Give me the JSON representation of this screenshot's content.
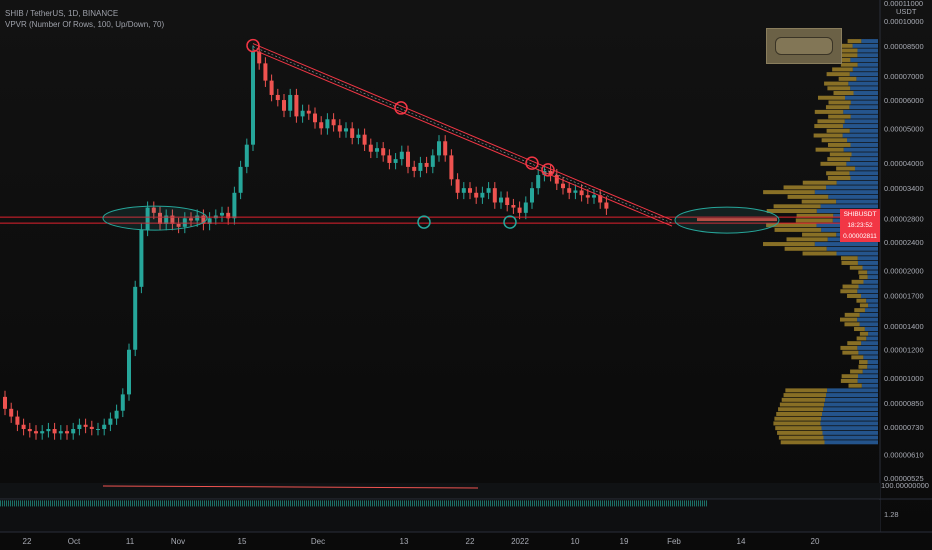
{
  "header": {
    "symbol_line": "SHIB / TetherUS, 1D, BINANCE",
    "indicator_line": "VPVR (Number Of Rows, 100, Up/Down, 70)"
  },
  "price_axis": {
    "top_partial": "0.00011000",
    "currency": "USDT",
    "ticks": [
      "0.00010000",
      "0.00008500",
      "0.00007000",
      "0.00006000",
      "0.00005000",
      "0.00004000",
      "0.00003400",
      "0.00002800",
      "0.00002400",
      "0.00002000",
      "0.00001700",
      "0.00001400",
      "0.00001200",
      "0.00001000",
      "0.00000850",
      "0.00000730",
      "0.00000610",
      "0.00000525"
    ],
    "current_symbol": "SHIBUSDT",
    "current_price": "0.00002981",
    "countdown": "18:23:52",
    "secondary": "0.00002811",
    "panel1_value": "100.00000000",
    "panel2_value": "1.28"
  },
  "time_axis": [
    "22",
    "Oct",
    "11",
    "Nov",
    "15",
    "Dec",
    "13",
    "22",
    "2022",
    "10",
    "19",
    "Feb",
    "14",
    "20"
  ],
  "colors": {
    "up": "#26a69a",
    "down": "#ef5350",
    "trendline": "#f23645",
    "support": "#e0202e",
    "vp_up": "#2962a3",
    "vp_down": "#a8882c",
    "circle_green": "#26a69a"
  },
  "chart_data": {
    "type": "candlestick",
    "symbol": "SHIB / TetherUS",
    "timeframe": "1D",
    "exchange": "BINANCE",
    "y_scale": "log",
    "ylim": [
      5.25e-06,
      0.00011
    ],
    "closes": [
      8.2e-06,
      7.8e-06,
      7.4e-06,
      7.2e-06,
      7.1e-06,
      7e-06,
      7.1e-06,
      7.2e-06,
      7e-06,
      7.1e-06,
      7e-06,
      7.2e-06,
      7.4e-06,
      7.3e-06,
      7.2e-06,
      7.2e-06,
      7.4e-06,
      7.7e-06,
      8.1e-06,
      9e-06,
      1.2e-05,
      1.8e-05,
      2.6e-05,
      3e-05,
      2.9e-05,
      2.7e-05,
      2.85e-05,
      2.7e-05,
      2.65e-05,
      2.8e-05,
      2.76e-05,
      2.85e-05,
      2.7e-05,
      2.8e-05,
      2.85e-05,
      2.9e-05,
      2.8e-05,
      3.3e-05,
      3.9e-05,
      4.5e-05,
      8.2e-05,
      7.6e-05,
      6.8e-05,
      6.2e-05,
      6e-05,
      5.6e-05,
      6.2e-05,
      5.4e-05,
      5.6e-05,
      5.5e-05,
      5.2e-05,
      5e-05,
      5.3e-05,
      5.1e-05,
      4.9e-05,
      5e-05,
      4.7e-05,
      4.8e-05,
      4.5e-05,
      4.3e-05,
      4.4e-05,
      4.2e-05,
      4e-05,
      4.1e-05,
      4.3e-05,
      3.9e-05,
      3.8e-05,
      4e-05,
      3.9e-05,
      4.2e-05,
      4.6e-05,
      4.2e-05,
      3.6e-05,
      3.3e-05,
      3.4e-05,
      3.3e-05,
      3.2e-05,
      3.3e-05,
      3.4e-05,
      3.1e-05,
      3.2e-05,
      3.05e-05,
      3e-05,
      2.9e-05,
      3.1e-05,
      3.4e-05,
      3.7e-05,
      3.8e-05,
      3.7e-05,
      3.5e-05,
      3.4e-05,
      3.3e-05,
      3.35e-05,
      3.25e-05,
      3.2e-05,
      3.25e-05,
      3.1e-05,
      2.98e-05
    ],
    "trendline": {
      "from_close_index": 40,
      "to_close_index": 97,
      "extends_to": "Jan 19"
    },
    "support_level": 2.75e-05
  }
}
